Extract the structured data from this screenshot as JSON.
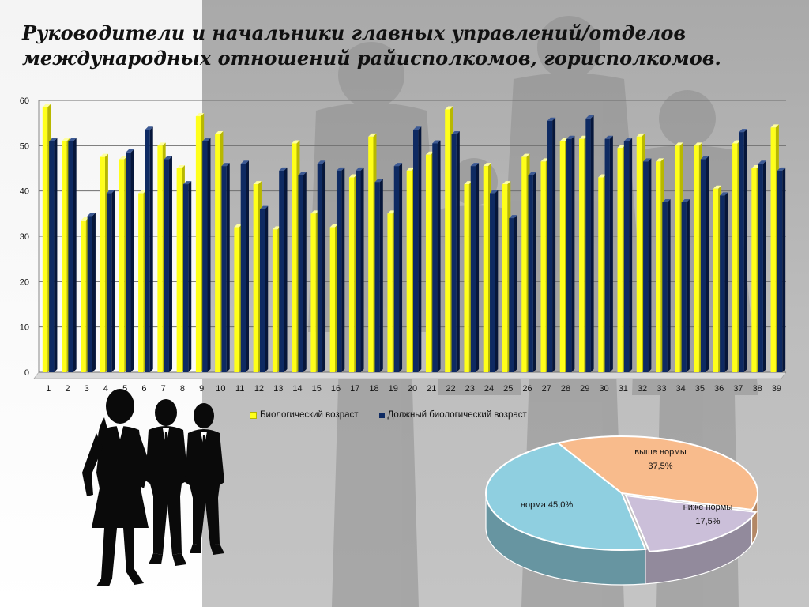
{
  "title": {
    "line1": "Руководители и начальники главных управлений/отделов",
    "line2": "международных отношений райисполкомов, горисполкомов."
  },
  "colors": {
    "series1": "#ffff1a",
    "series2": "#0e2a62",
    "pie_above": "#f8bb8c",
    "pie_norm": "#8fcfe0",
    "pie_below": "#cbbfd9"
  },
  "chart_data": [
    {
      "type": "bar",
      "title": "",
      "xlabel": "",
      "ylabel": "",
      "ylim": [
        0,
        60
      ],
      "yticks": [
        0,
        10,
        20,
        30,
        40,
        50,
        60
      ],
      "grid": true,
      "legend_position": "bottom",
      "categories": [
        "1",
        "2",
        "3",
        "4",
        "5",
        "6",
        "7",
        "8",
        "9",
        "10",
        "11",
        "12",
        "13",
        "14",
        "15",
        "16",
        "17",
        "18",
        "19",
        "20",
        "21",
        "22",
        "23",
        "24",
        "25",
        "26",
        "27",
        "28",
        "29",
        "30",
        "31",
        "32",
        "33",
        "34",
        "35",
        "36",
        "37",
        "38",
        "39"
      ],
      "series": [
        {
          "name": "Биологический возраст",
          "values": [
            58.5,
            51,
            33.5,
            47.5,
            47,
            39.5,
            50,
            45,
            56.5,
            52.5,
            32,
            41.5,
            31.5,
            50.5,
            35,
            32,
            43,
            52,
            35,
            44.5,
            48,
            58,
            41.5,
            45.5,
            41.5,
            47.5,
            46.5,
            51,
            51.5,
            43,
            49.5,
            52,
            46.5,
            50,
            50,
            40.5,
            50.5,
            45,
            54
          ]
        },
        {
          "name": "Должный биологический возраст",
          "values": [
            51,
            51,
            34.5,
            39.5,
            48.5,
            53.5,
            47,
            41.5,
            51,
            45.5,
            46,
            36,
            44.5,
            43.5,
            46,
            44.5,
            44.5,
            42,
            45.5,
            53.5,
            50.5,
            52.5,
            45.5,
            39.5,
            34,
            43.5,
            55.5,
            51.5,
            56,
            51.5,
            51,
            46.5,
            37.5,
            37.5,
            47,
            39,
            53,
            46,
            44.5
          ]
        }
      ]
    },
    {
      "type": "pie",
      "title": "",
      "slices": [
        {
          "label": "выше нормы",
          "value_text": "37,5%",
          "value": 37.5
        },
        {
          "label": "ниже нормы",
          "value_text": "17,5%",
          "value": 17.5
        },
        {
          "label": "норма",
          "value_text": "45,0%",
          "value": 45.0
        }
      ]
    }
  ]
}
